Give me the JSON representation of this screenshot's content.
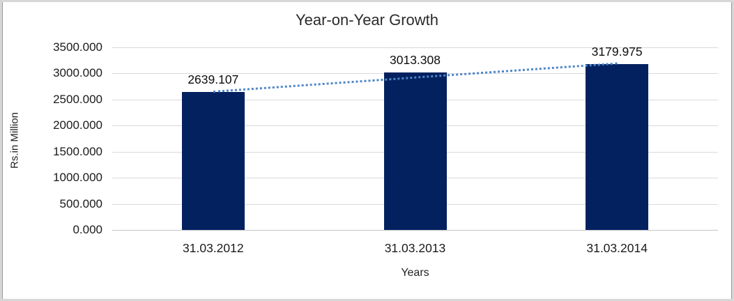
{
  "chart_data": {
    "type": "bar",
    "title": "Year-on-Year Growth",
    "xlabel": "Years",
    "ylabel": "Rs.in Million",
    "categories": [
      "31.03.2012",
      "31.03.2013",
      "31.03.2014"
    ],
    "values": [
      2639.107,
      3013.308,
      3179.975
    ],
    "value_labels": [
      "2639.107",
      "3013.308",
      "3179.975"
    ],
    "ylim": [
      0,
      3500
    ],
    "ytick_step": 500,
    "ytick_labels": [
      "0.000",
      "500.000",
      "1000.000",
      "1500.000",
      "2000.000",
      "2500.000",
      "3000.000",
      "3500.000"
    ],
    "grid": true,
    "legend": "none",
    "bar_color": "#04215f",
    "gridline_color": "#d9d9d9",
    "trendline": {
      "type": "linear",
      "style": "dotted",
      "color": "#4e86c8"
    }
  }
}
